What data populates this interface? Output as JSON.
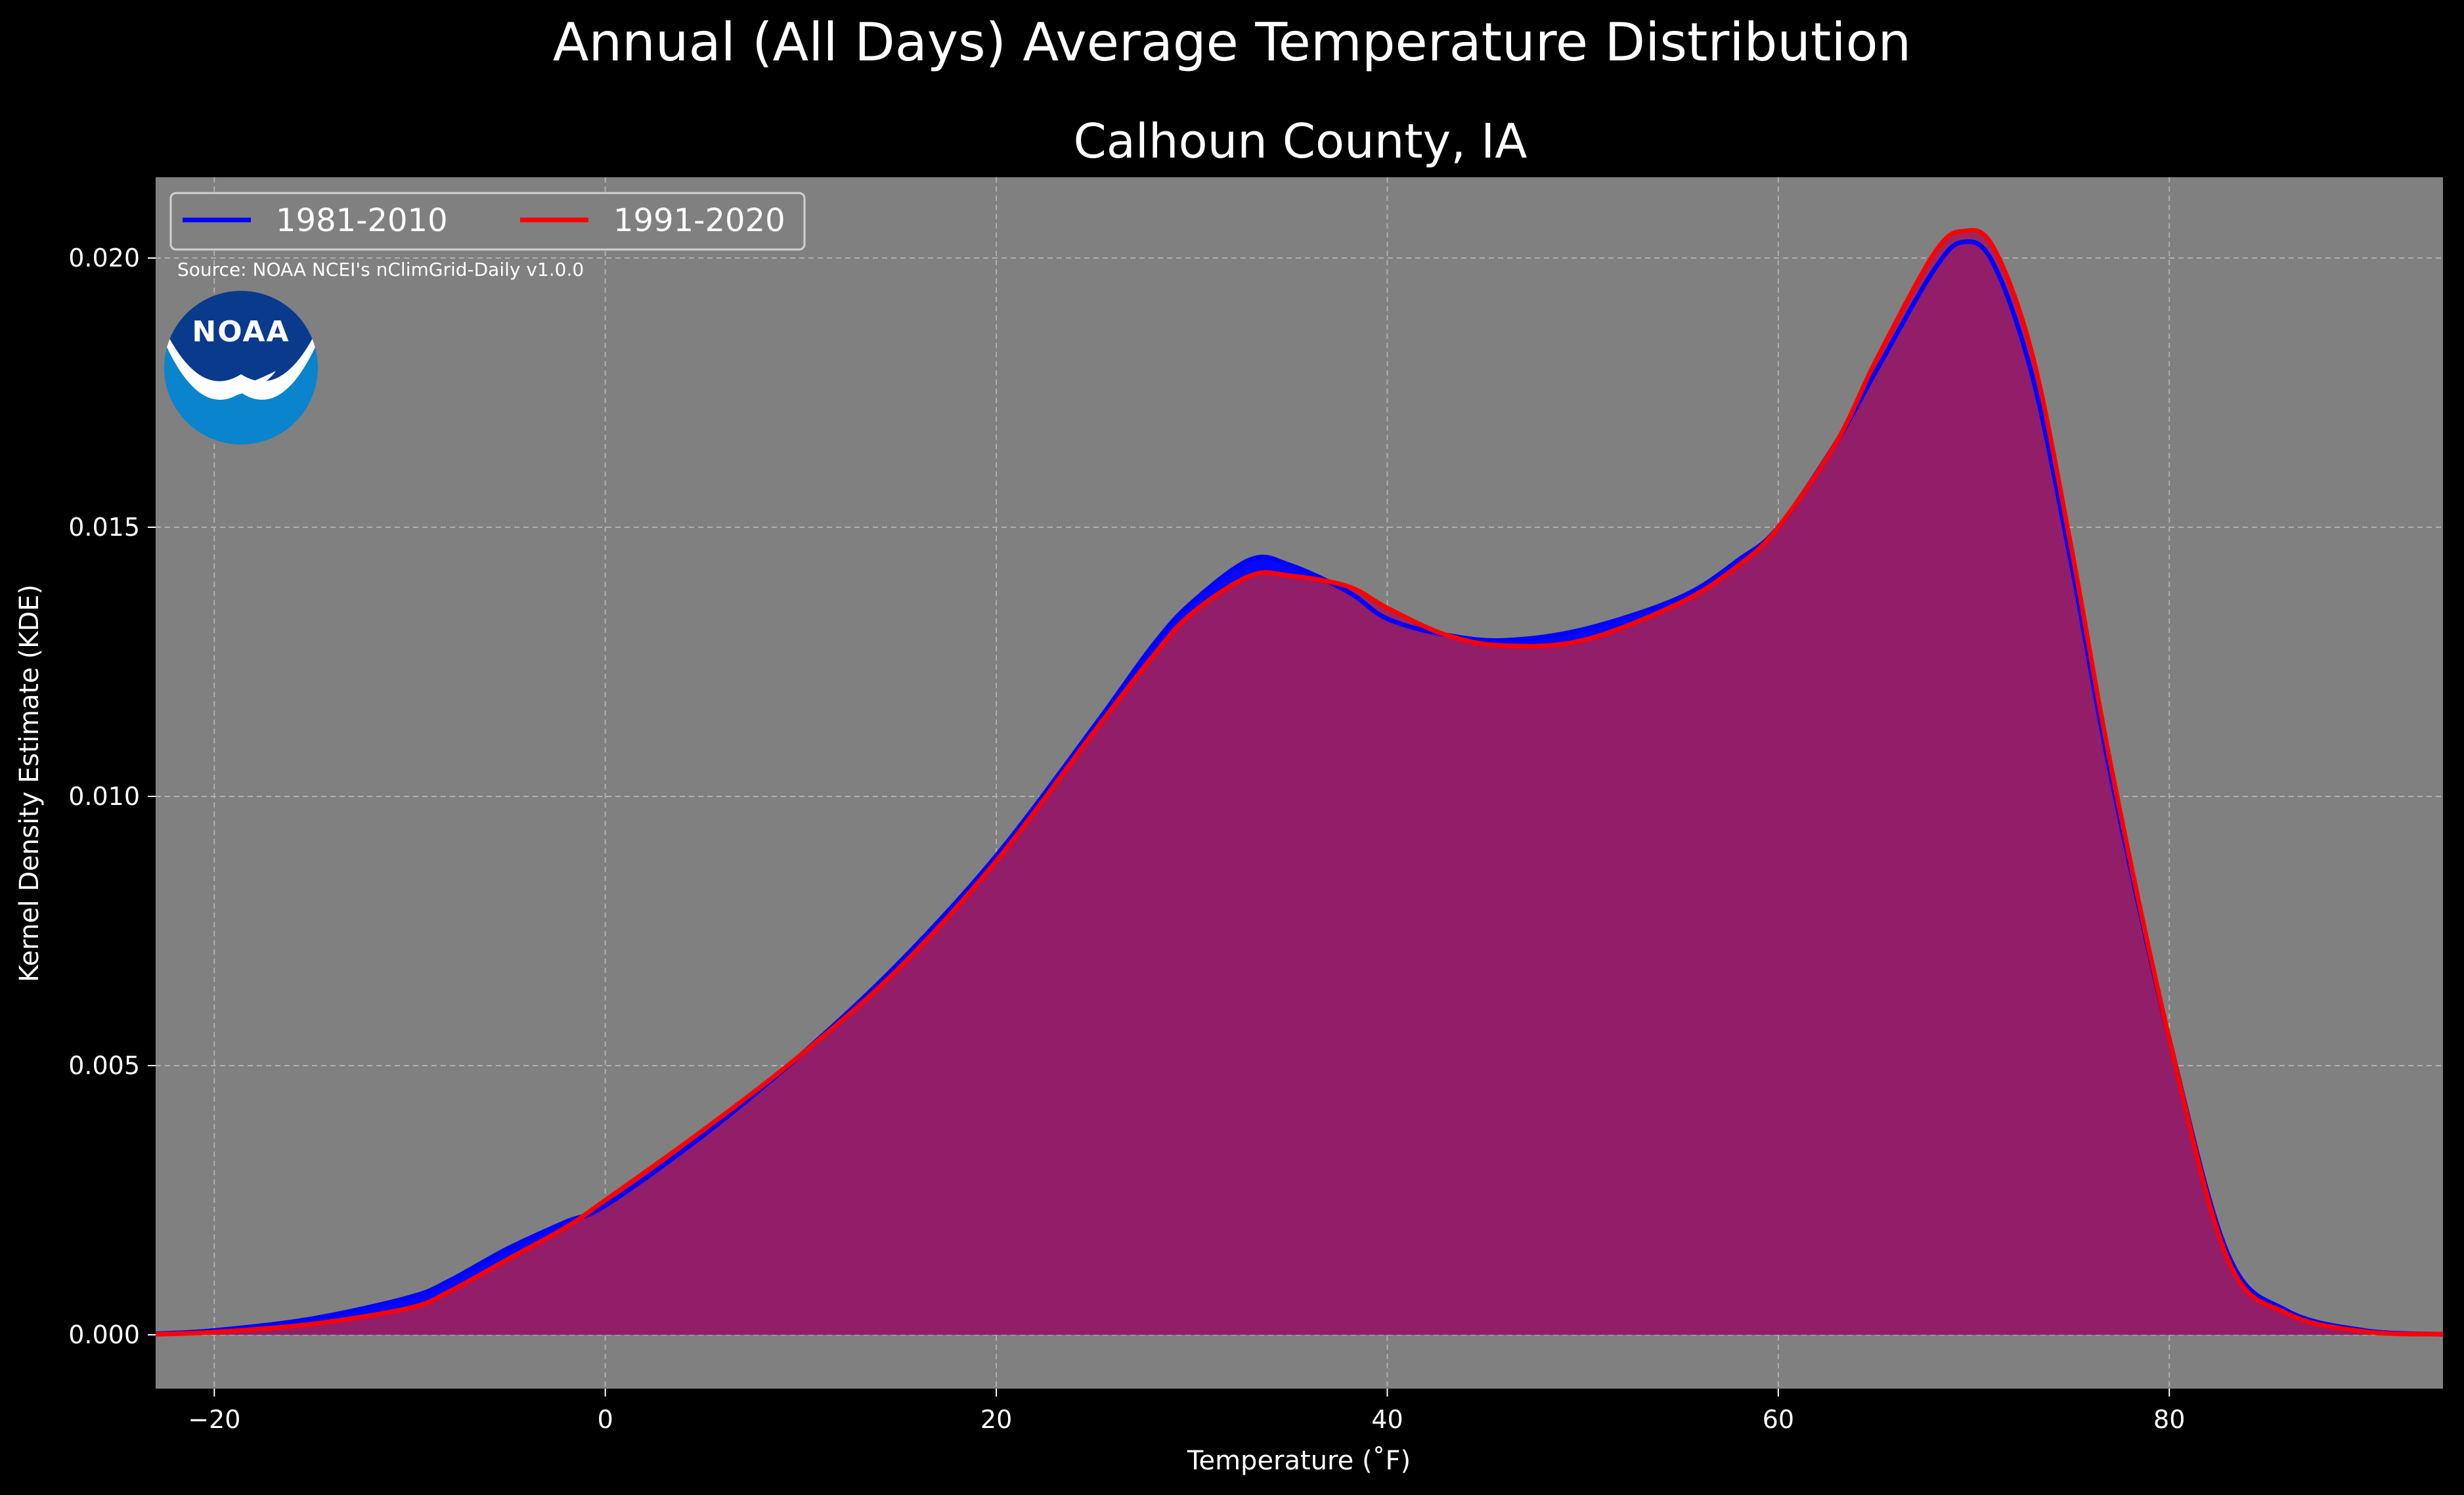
{
  "page": {
    "suptitle": "Annual (All Days) Average Temperature Distribution",
    "title": "Calhoun County, IA",
    "source": "Source: NOAA NCEI's nClimGrid-Daily v1.0.0",
    "logo_text": "NOAA"
  },
  "colors": {
    "background": "#000000",
    "plot_background": "#808080",
    "series_1981": "#0000ff",
    "series_1991": "#ff0000",
    "fill_overlap": "#9e1f5c",
    "grid": "#b0b0b0",
    "logo_dark": "#0a3a8c",
    "logo_light": "#0a84cc"
  },
  "chart_data": {
    "type": "area",
    "xlabel": "Temperature ($^\\circ$F)",
    "xlabel_display": "Temperature (˚F)",
    "ylabel": "Kernel Density Estimate (KDE)",
    "xlim": [
      -23,
      94
    ],
    "ylim": [
      -0.001,
      0.0215
    ],
    "xticks": [
      -20,
      0,
      20,
      40,
      60,
      80
    ],
    "xtick_labels": [
      "−20",
      "0",
      "20",
      "40",
      "60",
      "80"
    ],
    "yticks": [
      0.0,
      0.005,
      0.01,
      0.015,
      0.02
    ],
    "ytick_labels": [
      "0.000",
      "0.005",
      "0.010",
      "0.015",
      "0.020"
    ],
    "grid": true,
    "legend_position": "top-left",
    "series": [
      {
        "name": "1981-2010",
        "color": "#0000ff",
        "x": [
          -23,
          -20,
          -15,
          -10,
          -8,
          -5,
          -2,
          0,
          5,
          10,
          15,
          20,
          25,
          28,
          30,
          33,
          35,
          38,
          40,
          43,
          46,
          50,
          55,
          58,
          60,
          63,
          65,
          68,
          69.5,
          71,
          73,
          75,
          77,
          80,
          83,
          86,
          90,
          94
        ],
        "y": [
          2e-05,
          8e-05,
          0.0003,
          0.0007,
          0.001,
          0.0016,
          0.0021,
          0.0024,
          0.0037,
          0.0052,
          0.0069,
          0.0089,
          0.0113,
          0.0128,
          0.0136,
          0.0144,
          0.0143,
          0.0138,
          0.0133,
          0.013,
          0.0129,
          0.0131,
          0.0137,
          0.0144,
          0.015,
          0.0166,
          0.0179,
          0.0198,
          0.0203,
          0.0199,
          0.0178,
          0.0143,
          0.0104,
          0.0055,
          0.0015,
          0.00045,
          8e-05,
          1e-05
        ]
      },
      {
        "name": "1991-2020",
        "color": "#ff0000",
        "x": [
          -23,
          -20,
          -15,
          -10,
          -8,
          -5,
          -2,
          0,
          5,
          10,
          15,
          20,
          25,
          28,
          30,
          33,
          35,
          38,
          40,
          43,
          46,
          50,
          55,
          58,
          60,
          63,
          65,
          68,
          69.5,
          71,
          73,
          75,
          77,
          80,
          83,
          86,
          90,
          94
        ],
        "y": [
          1e-05,
          5e-05,
          0.0002,
          0.0005,
          0.0008,
          0.0014,
          0.002,
          0.0025,
          0.0038,
          0.0052,
          0.0068,
          0.0088,
          0.0112,
          0.0126,
          0.0134,
          0.0141,
          0.0141,
          0.0139,
          0.0135,
          0.013,
          0.0128,
          0.0129,
          0.0136,
          0.0143,
          0.015,
          0.0166,
          0.0181,
          0.0201,
          0.0205,
          0.0202,
          0.0182,
          0.0146,
          0.0106,
          0.0055,
          0.0014,
          0.0004,
          6e-05,
          1e-05
        ]
      }
    ]
  }
}
